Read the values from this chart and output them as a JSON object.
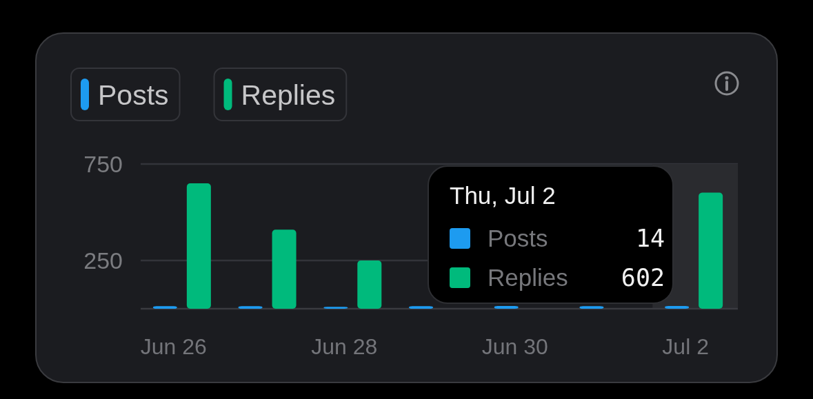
{
  "chart_data": {
    "type": "bar",
    "categories": [
      "Jun 26",
      null,
      "Jun 28",
      null,
      "Jun 30",
      null,
      "Jul 2"
    ],
    "series": [
      {
        "name": "Posts",
        "color": "#1d9bf0",
        "values": [
          13,
          13,
          10,
          13,
          14,
          13,
          14
        ]
      },
      {
        "name": "Replies",
        "color": "#00ba7c",
        "values": [
          650,
          410,
          250,
          null,
          null,
          null,
          602
        ]
      }
    ],
    "ylim": [
      0,
      750
    ],
    "yticks": [
      250,
      750
    ],
    "grid": "y",
    "legend": "top left",
    "bands": [
      {
        "axis": "x",
        "from": "Jul 2",
        "to": "Jul 2",
        "color": "#2a2b2f"
      }
    ],
    "annotations": [
      "Thu, Jul 2",
      "Posts 14",
      "Replies 602"
    ]
  }
}
